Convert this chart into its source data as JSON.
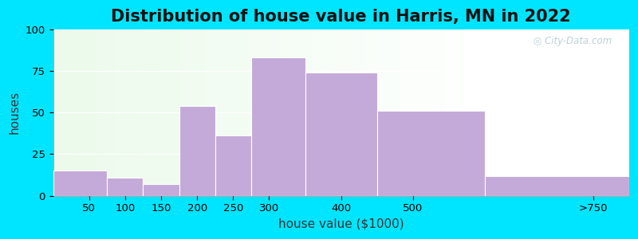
{
  "title": "Distribution of house value in Harris, MN in 2022",
  "xlabel": "house value ($1000)",
  "ylabel": "houses",
  "bin_edges": [
    0,
    75,
    125,
    175,
    225,
    275,
    350,
    450,
    600,
    800
  ],
  "tick_positions": [
    50,
    100,
    150,
    200,
    250,
    300,
    400,
    500,
    750
  ],
  "tick_labels": [
    "50",
    "100",
    "150",
    "200",
    "250",
    "300",
    "400",
    "500",
    ">750"
  ],
  "values": [
    15,
    11,
    7,
    54,
    36,
    83,
    74,
    51,
    12
  ],
  "bar_color": "#c4aad8",
  "bar_edge_color": "#ffffff",
  "ylim": [
    0,
    100
  ],
  "yticks": [
    0,
    25,
    50,
    75,
    100
  ],
  "background_outer": "#00e5ff",
  "title_fontsize": 15,
  "axis_label_fontsize": 11,
  "tick_fontsize": 9.5,
  "watermark_text": "City-Data.com",
  "watermark_color": "#b0c8d0"
}
